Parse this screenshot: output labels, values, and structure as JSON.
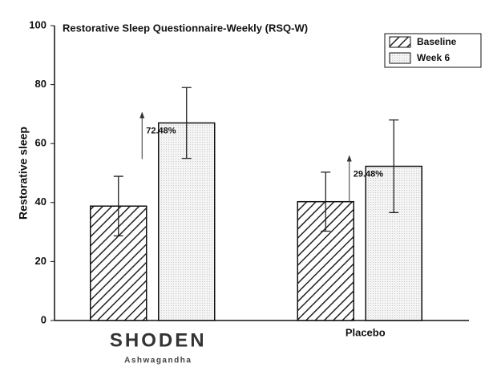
{
  "chart_data": {
    "type": "bar",
    "title": "Restorative Sleep Questionnaire-Weekly (RSQ-W)",
    "y_label": "Restorative sleep",
    "categories": [
      "SHODEN",
      "Placebo"
    ],
    "category_sublabels": [
      "Ashwagandha",
      null
    ],
    "series": [
      {
        "name": "Baseline",
        "color": "#222222",
        "pattern": "hatch",
        "values": [
          38.8,
          40.3
        ],
        "errors": [
          10.1,
          10
        ]
      },
      {
        "name": "Week 6",
        "color": "#d8d8d8",
        "pattern": "dots",
        "values": [
          67,
          52.3
        ],
        "errors": [
          12,
          15.7
        ]
      }
    ],
    "annotations": [
      "72.48%",
      "29.48%"
    ],
    "ylim": [
      0,
      100
    ],
    "yticks": [
      0,
      20,
      40,
      60,
      80,
      100
    ],
    "legend": "upper right",
    "grid": false
  }
}
